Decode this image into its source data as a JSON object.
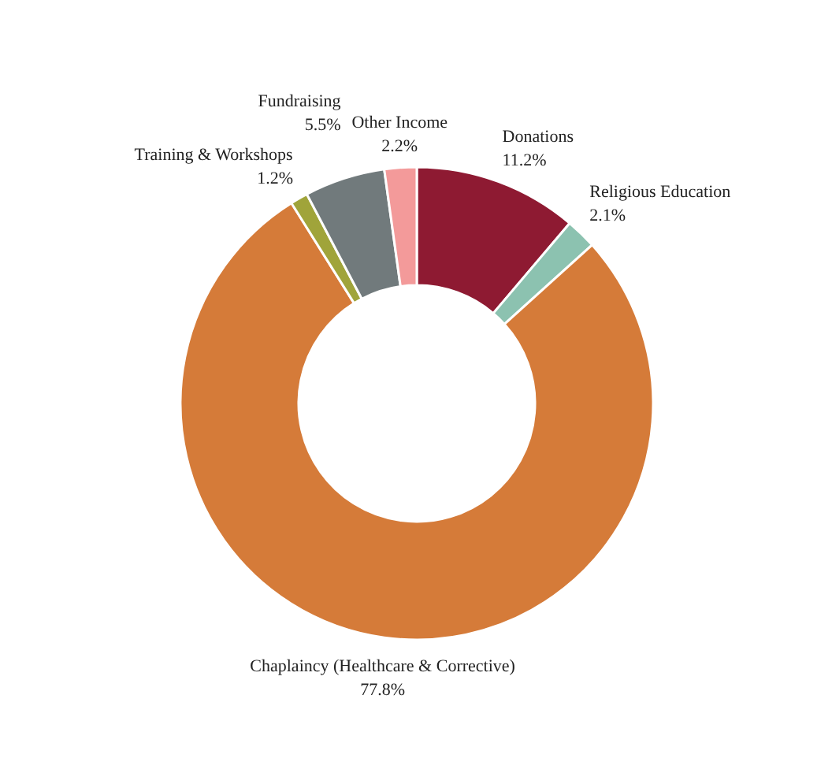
{
  "chart_data": {
    "type": "donut",
    "categories": [
      "Donations",
      "Religious Education",
      "Chaplaincy (Healthcare & Corrective)",
      "Training & Workshops",
      "Fundraising",
      "Other Income"
    ],
    "values": [
      11.2,
      2.1,
      77.8,
      1.2,
      5.5,
      2.2
    ],
    "colors": [
      "#8e1a32",
      "#8cc2b0",
      "#d57b39",
      "#a0a43a",
      "#717a7c",
      "#f39a9a"
    ],
    "value_labels": [
      "11.2%",
      "2.1%",
      "77.8%",
      "1.2%",
      "5.5%",
      "2.2%"
    ],
    "legend": false
  }
}
